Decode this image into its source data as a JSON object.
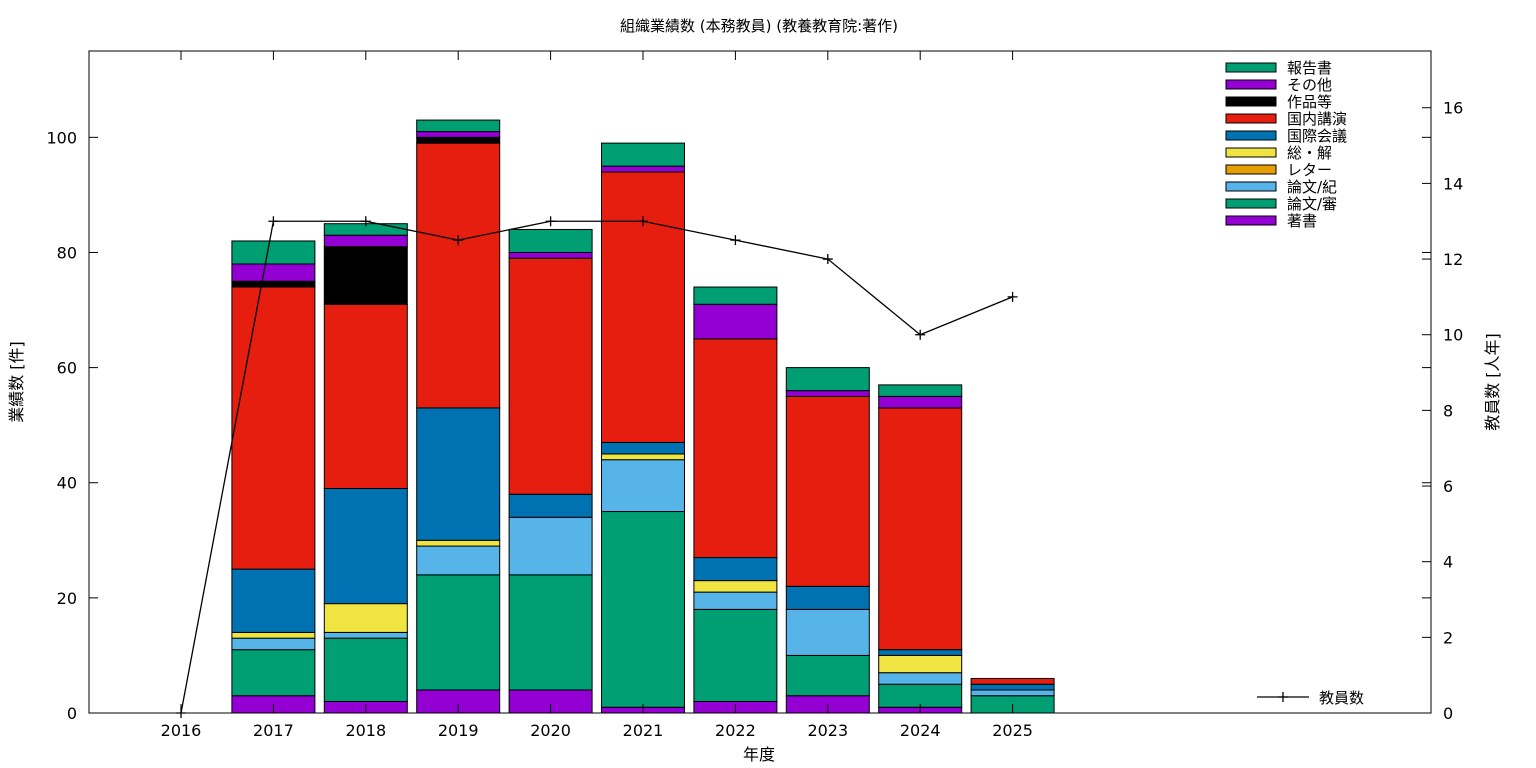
{
  "chart_data": {
    "type": "bar",
    "title": "組織業績数 (本務教員) (教養教育院:著作)",
    "xlabel": "年度",
    "ylabel": "業績数 [件]",
    "y2label": "教員数 [人年]",
    "ylim": [
      0,
      115
    ],
    "y2lim": [
      0,
      17.5
    ],
    "categories": [
      "2016",
      "2017",
      "2018",
      "2019",
      "2020",
      "2021",
      "2022",
      "2023",
      "2024",
      "2025"
    ],
    "yticks": [
      "0",
      "20",
      "40",
      "60",
      "80",
      "100"
    ],
    "y2ticks": [
      "0",
      "2",
      "4",
      "6",
      "8",
      "10",
      "12",
      "14",
      "16"
    ],
    "legend_placement": "top-right",
    "series": [
      {
        "name": "著書",
        "color": "#9400d3",
        "values": [
          0,
          3,
          2,
          4,
          4,
          1,
          2,
          3,
          1,
          0
        ]
      },
      {
        "name": "論文/審",
        "color": "#009e73",
        "values": [
          0,
          8,
          11,
          20,
          20,
          34,
          16,
          7,
          4,
          3
        ]
      },
      {
        "name": "論文/紀",
        "color": "#56b4e9",
        "values": [
          0,
          2,
          1,
          5,
          10,
          9,
          3,
          8,
          2,
          1
        ]
      },
      {
        "name": "レター",
        "color": "#e69f00",
        "values": [
          0,
          0,
          0,
          0,
          0,
          0,
          0,
          0,
          0,
          0
        ]
      },
      {
        "name": "総・解",
        "color": "#f0e442",
        "values": [
          0,
          1,
          5,
          1,
          0,
          1,
          2,
          0,
          3,
          0
        ]
      },
      {
        "name": "国際会議",
        "color": "#0072b2",
        "values": [
          0,
          11,
          20,
          23,
          4,
          2,
          4,
          4,
          1,
          1
        ]
      },
      {
        "name": "国内講演",
        "color": "#e51e10",
        "values": [
          0,
          49,
          32,
          46,
          41,
          47,
          38,
          33,
          42,
          1
        ]
      },
      {
        "name": "作品等",
        "color": "#000000",
        "values": [
          0,
          1,
          10,
          1,
          0,
          0,
          0,
          0,
          0,
          0
        ]
      },
      {
        "name": "その他",
        "color": "#9400d3",
        "values": [
          0,
          3,
          2,
          1,
          1,
          1,
          6,
          1,
          2,
          0
        ]
      },
      {
        "name": "報告書",
        "color": "#009e73",
        "values": [
          0,
          4,
          2,
          2,
          4,
          4,
          3,
          4,
          2,
          0
        ]
      }
    ],
    "line_series": {
      "name": "教員数",
      "axis": "y2",
      "color": "#000000",
      "values": [
        0,
        13,
        13,
        12.5,
        13,
        13,
        12.5,
        12,
        10,
        11
      ]
    }
  }
}
